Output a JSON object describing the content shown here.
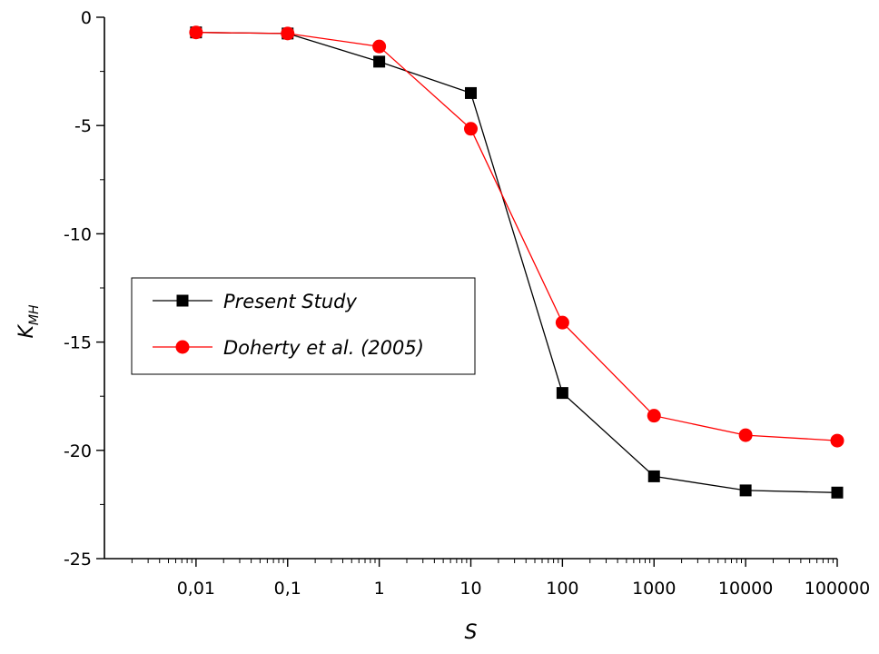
{
  "chart_data": {
    "type": "line",
    "xlabel": "S",
    "ylabel": "K",
    "ylabel_sub": "MH",
    "x_scale": "log",
    "xlim": [
      0.001,
      100000
    ],
    "ylim": [
      -25,
      0
    ],
    "x_ticks": [
      0.01,
      0.1,
      1,
      10,
      100,
      1000,
      10000,
      100000
    ],
    "x_tick_labels": [
      "0,01",
      "0,1",
      "1",
      "10",
      "100",
      "1000",
      "10000",
      "100000"
    ],
    "y_ticks": [
      0,
      -5,
      -10,
      -15,
      -20,
      -25
    ],
    "y_tick_labels": [
      "0",
      "-5",
      "-10",
      "-15",
      "-20",
      "-25"
    ],
    "grid": false,
    "legend_position": "center-left",
    "series": [
      {
        "name": "Present Study",
        "color": "#000000",
        "marker": "square",
        "x": [
          0.01,
          0.1,
          1,
          10,
          100,
          1000,
          10000,
          100000
        ],
        "y": [
          -0.7,
          -0.75,
          -2.05,
          -3.5,
          -17.35,
          -21.2,
          -21.85,
          -21.95
        ]
      },
      {
        "name": "Doherty et al. (2005)",
        "color": "#ff0000",
        "marker": "circle",
        "x": [
          0.01,
          0.1,
          1,
          10,
          100,
          1000,
          10000,
          100000
        ],
        "y": [
          -0.7,
          -0.75,
          -1.35,
          -5.15,
          -14.1,
          -18.4,
          -19.3,
          -19.55
        ]
      }
    ]
  }
}
